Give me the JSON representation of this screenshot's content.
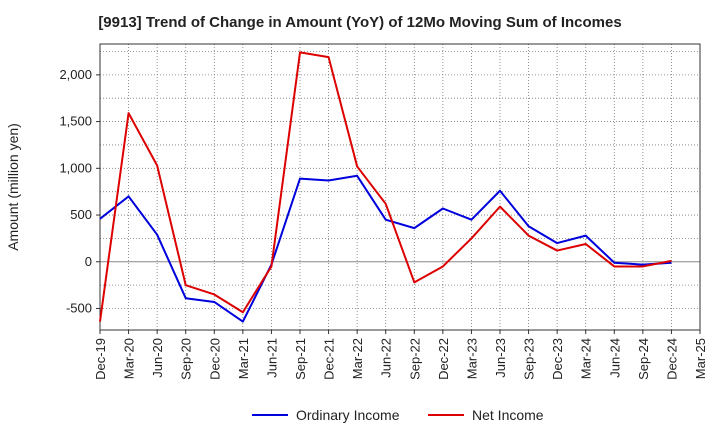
{
  "chart_data": {
    "type": "line",
    "title": "[9913]  Trend of Change in Amount (YoY) of 12Mo Moving Sum of Incomes",
    "xlabel": "",
    "ylabel": "Amount (million yen)",
    "ylim": [
      -730,
      2330
    ],
    "yticks": [
      -500,
      0,
      500,
      1000,
      1500,
      2000
    ],
    "ytick_labels": [
      "-500",
      "0",
      "500",
      "1,000",
      "1,500",
      "2,000"
    ],
    "grid": true,
    "legend_position": "bottom-center",
    "categories": [
      "Dec-19",
      "Mar-20",
      "Jun-20",
      "Sep-20",
      "Dec-20",
      "Mar-21",
      "Jun-21",
      "Sep-21",
      "Dec-21",
      "Mar-22",
      "Jun-22",
      "Sep-22",
      "Dec-22",
      "Mar-23",
      "Jun-23",
      "Sep-23",
      "Dec-23",
      "Mar-24",
      "Jun-24",
      "Sep-24",
      "Dec-24",
      "Mar-25"
    ],
    "series": [
      {
        "name": "Ordinary Income",
        "color": "#0000dd",
        "values": [
          460,
          700,
          290,
          -390,
          -430,
          -640,
          -30,
          890,
          870,
          920,
          450,
          360,
          570,
          450,
          760,
          380,
          200,
          280,
          -10,
          -30,
          -10,
          null
        ]
      },
      {
        "name": "Net Income",
        "color": "#dd0000",
        "values": [
          -640,
          1590,
          1030,
          -250,
          -350,
          -540,
          -50,
          2240,
          2190,
          1020,
          620,
          -220,
          -50,
          250,
          590,
          280,
          120,
          190,
          -50,
          -50,
          10,
          null
        ]
      }
    ]
  }
}
